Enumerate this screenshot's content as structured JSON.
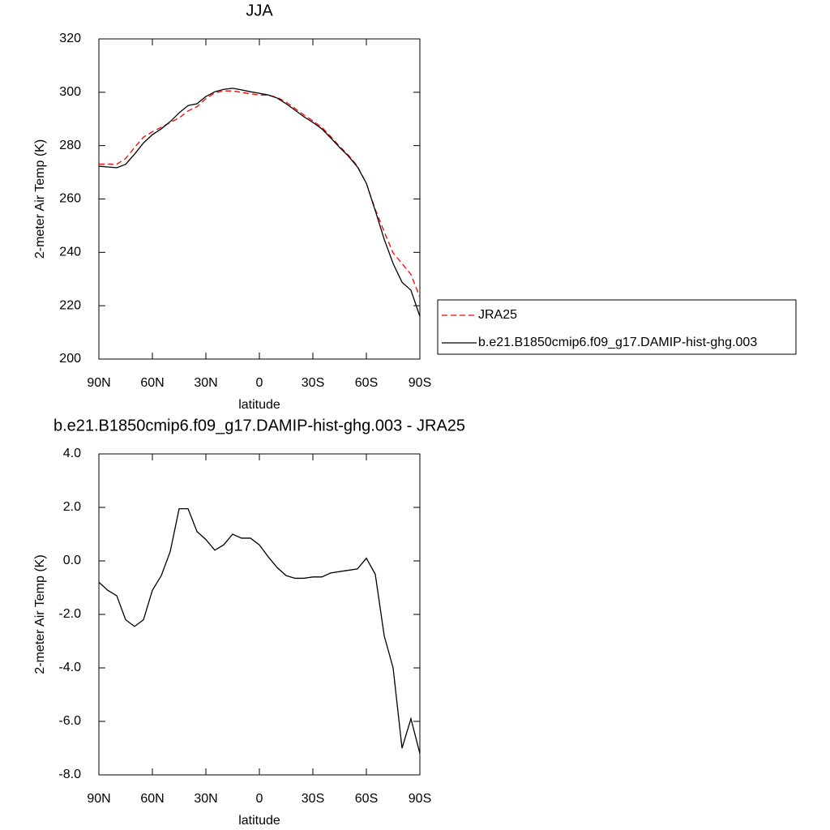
{
  "chart_data": [
    {
      "type": "line",
      "title": "JJA",
      "xlabel": "latitude",
      "ylabel": "2-meter Air Temp (K)",
      "legend": "right",
      "x": [
        90,
        85,
        80,
        75,
        70,
        65,
        60,
        55,
        50,
        45,
        40,
        35,
        30,
        25,
        20,
        15,
        10,
        5,
        0,
        -5,
        -10,
        -15,
        -20,
        -25,
        -30,
        -35,
        -40,
        -45,
        -50,
        -55,
        -60,
        -65,
        -70,
        -75,
        -80,
        -85,
        -90
      ],
      "series": [
        {
          "name": "JRA25",
          "color": "#ff0000",
          "dashed": true,
          "values": [
            273.1,
            273.1,
            273.0,
            275.2,
            279.3,
            283.2,
            285.2,
            286.9,
            288.7,
            290.4,
            293.0,
            294.6,
            297.6,
            299.8,
            300.5,
            300.5,
            300.0,
            299.4,
            299.0,
            298.9,
            298.1,
            296.3,
            293.9,
            291.5,
            289.3,
            286.9,
            283.4,
            279.7,
            276.4,
            272.3,
            265.8,
            256.1,
            247.7,
            239.8,
            235.8,
            231.7,
            223.2
          ]
        },
        {
          "name": "b.e21.B1850cmip6.f09_g17.DAMIP-hist-ghg.003",
          "color": "#000000",
          "dashed": false,
          "values": [
            272.3,
            272.0,
            271.7,
            273.0,
            276.8,
            281.0,
            284.1,
            286.3,
            289.0,
            292.3,
            295.0,
            295.7,
            298.4,
            300.2,
            301.1,
            301.5,
            300.9,
            300.2,
            299.6,
            299.0,
            297.8,
            295.7,
            293.3,
            290.8,
            288.7,
            286.3,
            282.9,
            279.3,
            276.0,
            272.0,
            265.9,
            255.6,
            244.9,
            235.8,
            228.8,
            225.8,
            216.0
          ]
        }
      ],
      "xlim": [
        90,
        -90
      ],
      "ylim": [
        200,
        320
      ],
      "xticks": [
        {
          "value": 90,
          "label": "90N"
        },
        {
          "value": 60,
          "label": "60N"
        },
        {
          "value": 30,
          "label": "30N"
        },
        0,
        {
          "value": -30,
          "label": "30S"
        },
        {
          "value": -60,
          "label": "60S"
        },
        {
          "value": -90,
          "label": "90S"
        }
      ],
      "yticks": [
        200,
        220,
        240,
        260,
        280,
        300,
        320
      ]
    },
    {
      "type": "line",
      "title": "b.e21.B1850cmip6.f09_g17.DAMIP-hist-ghg.003 - JRA25",
      "xlabel": "latitude",
      "ylabel": "2-meter Air Temp (K)",
      "x": [
        90,
        85,
        80,
        75,
        70,
        65,
        60,
        55,
        50,
        45,
        40,
        35,
        30,
        25,
        20,
        15,
        10,
        5,
        0,
        -5,
        -10,
        -15,
        -20,
        -25,
        -30,
        -35,
        -40,
        -45,
        -50,
        -55,
        -60,
        -65,
        -70,
        -75,
        -80,
        -85,
        -90
      ],
      "series": [
        {
          "color": "#000000",
          "dashed": false,
          "values": [
            -0.8,
            -1.1,
            -1.3,
            -2.2,
            -2.45,
            -2.2,
            -1.1,
            -0.55,
            0.35,
            1.95,
            1.95,
            1.1,
            0.8,
            0.4,
            0.6,
            1.0,
            0.85,
            0.85,
            0.6,
            0.15,
            -0.25,
            -0.55,
            -0.65,
            -0.65,
            -0.6,
            -0.6,
            -0.45,
            -0.4,
            -0.35,
            -0.3,
            0.1,
            -0.5,
            -2.8,
            -4.0,
            -7.0,
            -5.9,
            -7.2
          ]
        }
      ],
      "xlim": [
        90,
        -90
      ],
      "ylim": [
        -8,
        4
      ],
      "xticks": [
        {
          "value": 90,
          "label": "90N"
        },
        {
          "value": 60,
          "label": "60N"
        },
        {
          "value": 30,
          "label": "30N"
        },
        0,
        {
          "value": -30,
          "label": "30S"
        },
        {
          "value": -60,
          "label": "60S"
        },
        {
          "value": -90,
          "label": "90S"
        }
      ],
      "yticks": [
        {
          "value": -8,
          "label": "-8.0"
        },
        {
          "value": -6,
          "label": "-6.0"
        },
        {
          "value": -4,
          "label": "-4.0"
        },
        {
          "value": -2,
          "label": "-2.0"
        },
        {
          "value": 0,
          "label": "0.0"
        },
        {
          "value": 2,
          "label": "2.0"
        },
        {
          "value": 4,
          "label": "4.0"
        }
      ]
    }
  ]
}
